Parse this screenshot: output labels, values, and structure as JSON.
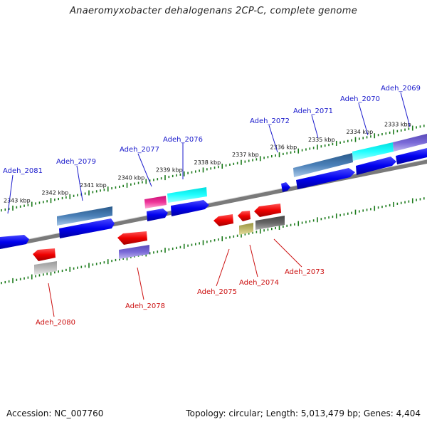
{
  "title": "Anaeromyxobacter dehalogenans 2CP-C, complete genome",
  "footer": {
    "accession": "Accession: NC_007760",
    "summary": "Topology: circular; Length: 5,013,479 bp; Genes: 4,404"
  },
  "colors": {
    "forward_label": "#1a1acc",
    "reverse_label": "#cc1111",
    "tick": "#1a7a1a",
    "backbone": "#808080"
  },
  "ticks": [
    {
      "label": "2343 kbp",
      "pos": 2343
    },
    {
      "label": "2342 kbp",
      "pos": 2342
    },
    {
      "label": "2341 kbp",
      "pos": 2341
    },
    {
      "label": "2340 kbp",
      "pos": 2340
    },
    {
      "label": "2339 kbp",
      "pos": 2339
    },
    {
      "label": "2338 kbp",
      "pos": 2338
    },
    {
      "label": "2337 kbp",
      "pos": 2337
    },
    {
      "label": "2336 kbp",
      "pos": 2336
    },
    {
      "label": "2335 kbp",
      "pos": 2335
    },
    {
      "label": "2334 kbp",
      "pos": 2334
    },
    {
      "label": "2333 kbp",
      "pos": 2333
    }
  ],
  "labels": [
    {
      "id": "Adeh_2081",
      "strand": "forward"
    },
    {
      "id": "Adeh_2079",
      "strand": "forward"
    },
    {
      "id": "Adeh_2077",
      "strand": "forward"
    },
    {
      "id": "Adeh_2076",
      "strand": "forward"
    },
    {
      "id": "Adeh_2072",
      "strand": "forward"
    },
    {
      "id": "Adeh_2071",
      "strand": "forward"
    },
    {
      "id": "Adeh_2070",
      "strand": "forward"
    },
    {
      "id": "Adeh_2069",
      "strand": "forward"
    },
    {
      "id": "Adeh_2080",
      "strand": "reverse"
    },
    {
      "id": "Adeh_2078",
      "strand": "reverse"
    },
    {
      "id": "Adeh_2075",
      "strand": "reverse"
    },
    {
      "id": "Adeh_2074",
      "strand": "reverse"
    },
    {
      "id": "Adeh_2073",
      "strand": "reverse"
    }
  ]
}
